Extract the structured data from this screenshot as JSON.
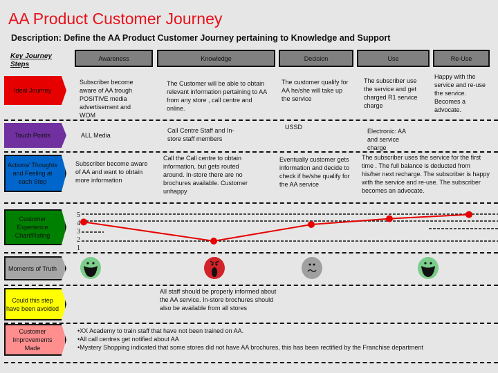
{
  "title": "AA Product Customer Journey",
  "description": "Description: Define the AA Product Customer Journey  pertaining to Knowledge and Support",
  "key_steps_label": [
    "Key Journey",
    "Steps"
  ],
  "steps": [
    "Awareness",
    "Knowledge",
    "Decision",
    "Use",
    "Re-Use"
  ],
  "rows": {
    "ideal": {
      "label": "Ideal Journey",
      "color": "#e60000",
      "cells": [
        "Subscriber become aware of AA trough POSITIVE media advertisement and WOM",
        "The Customer will be able to obtain relevant information pertaining to AA from any store , call centre and online.",
        "The customer qualify for AA he/she will take up the service",
        "The subscriber use the service and get charged R1 service charge",
        "Happy with the service and re-use the service. Becomes a advocate."
      ]
    },
    "touch": {
      "label": "Touch Points",
      "color": "#7030a0",
      "cells": [
        "ALL Media",
        "Call Centre Staff and In-store staff members",
        "USSD",
        "Electronic: AA and service charge"
      ]
    },
    "actions": {
      "label": "Actions/ Thoughts and Feeling at each Step",
      "color": "#0066cc",
      "cells": [
        "Subscriber become aware of AA and want to obtain more information",
        "Call the Call centre to obtain information, but gets routed around. In-store there are no brochures available. Customer unhappy",
        "Eventually customer gets information and decide to check if he/she qualify for the AA service",
        "The subscriber uses the service for the first time . The full balance is deducted from his/her next recharge. The subscriber is happy with the service and re-use. The subscriber becomes an advocate."
      ]
    },
    "experience": {
      "label": "Customer Experience Chart/Rating",
      "color": "#008000"
    },
    "moments": {
      "label": "Moments of Truth",
      "color": "#a6a6a6",
      "faces": [
        "happy",
        "angry",
        "neutral",
        "happy"
      ]
    },
    "avoided": {
      "label": "Could this step have been avoided",
      "color": "#ffff00",
      "text": "All staff should be properly informed about the AA service. In-store brochures should also be available from all stores"
    },
    "improvements": {
      "label": "Customer Improvements Made",
      "color": "#ff8f8f",
      "items": [
        "•XX Academy to train staff that have not been trained on AA.",
        "•All call centres get notified about AA",
        "•Mystery Shopping indicated that some stores did not have AA brochures, this has been rectified by the Franchise department"
      ]
    }
  },
  "chart_data": {
    "type": "line",
    "categories": [
      "Awareness",
      "Knowledge",
      "Decision",
      "Use",
      "Re-Use"
    ],
    "values": [
      4.3,
      2.0,
      4.0,
      4.7,
      5.2
    ],
    "yticks": [
      "5",
      "4",
      "3",
      "2",
      "1"
    ],
    "ylim": [
      1,
      5
    ],
    "color": "#e60000"
  }
}
